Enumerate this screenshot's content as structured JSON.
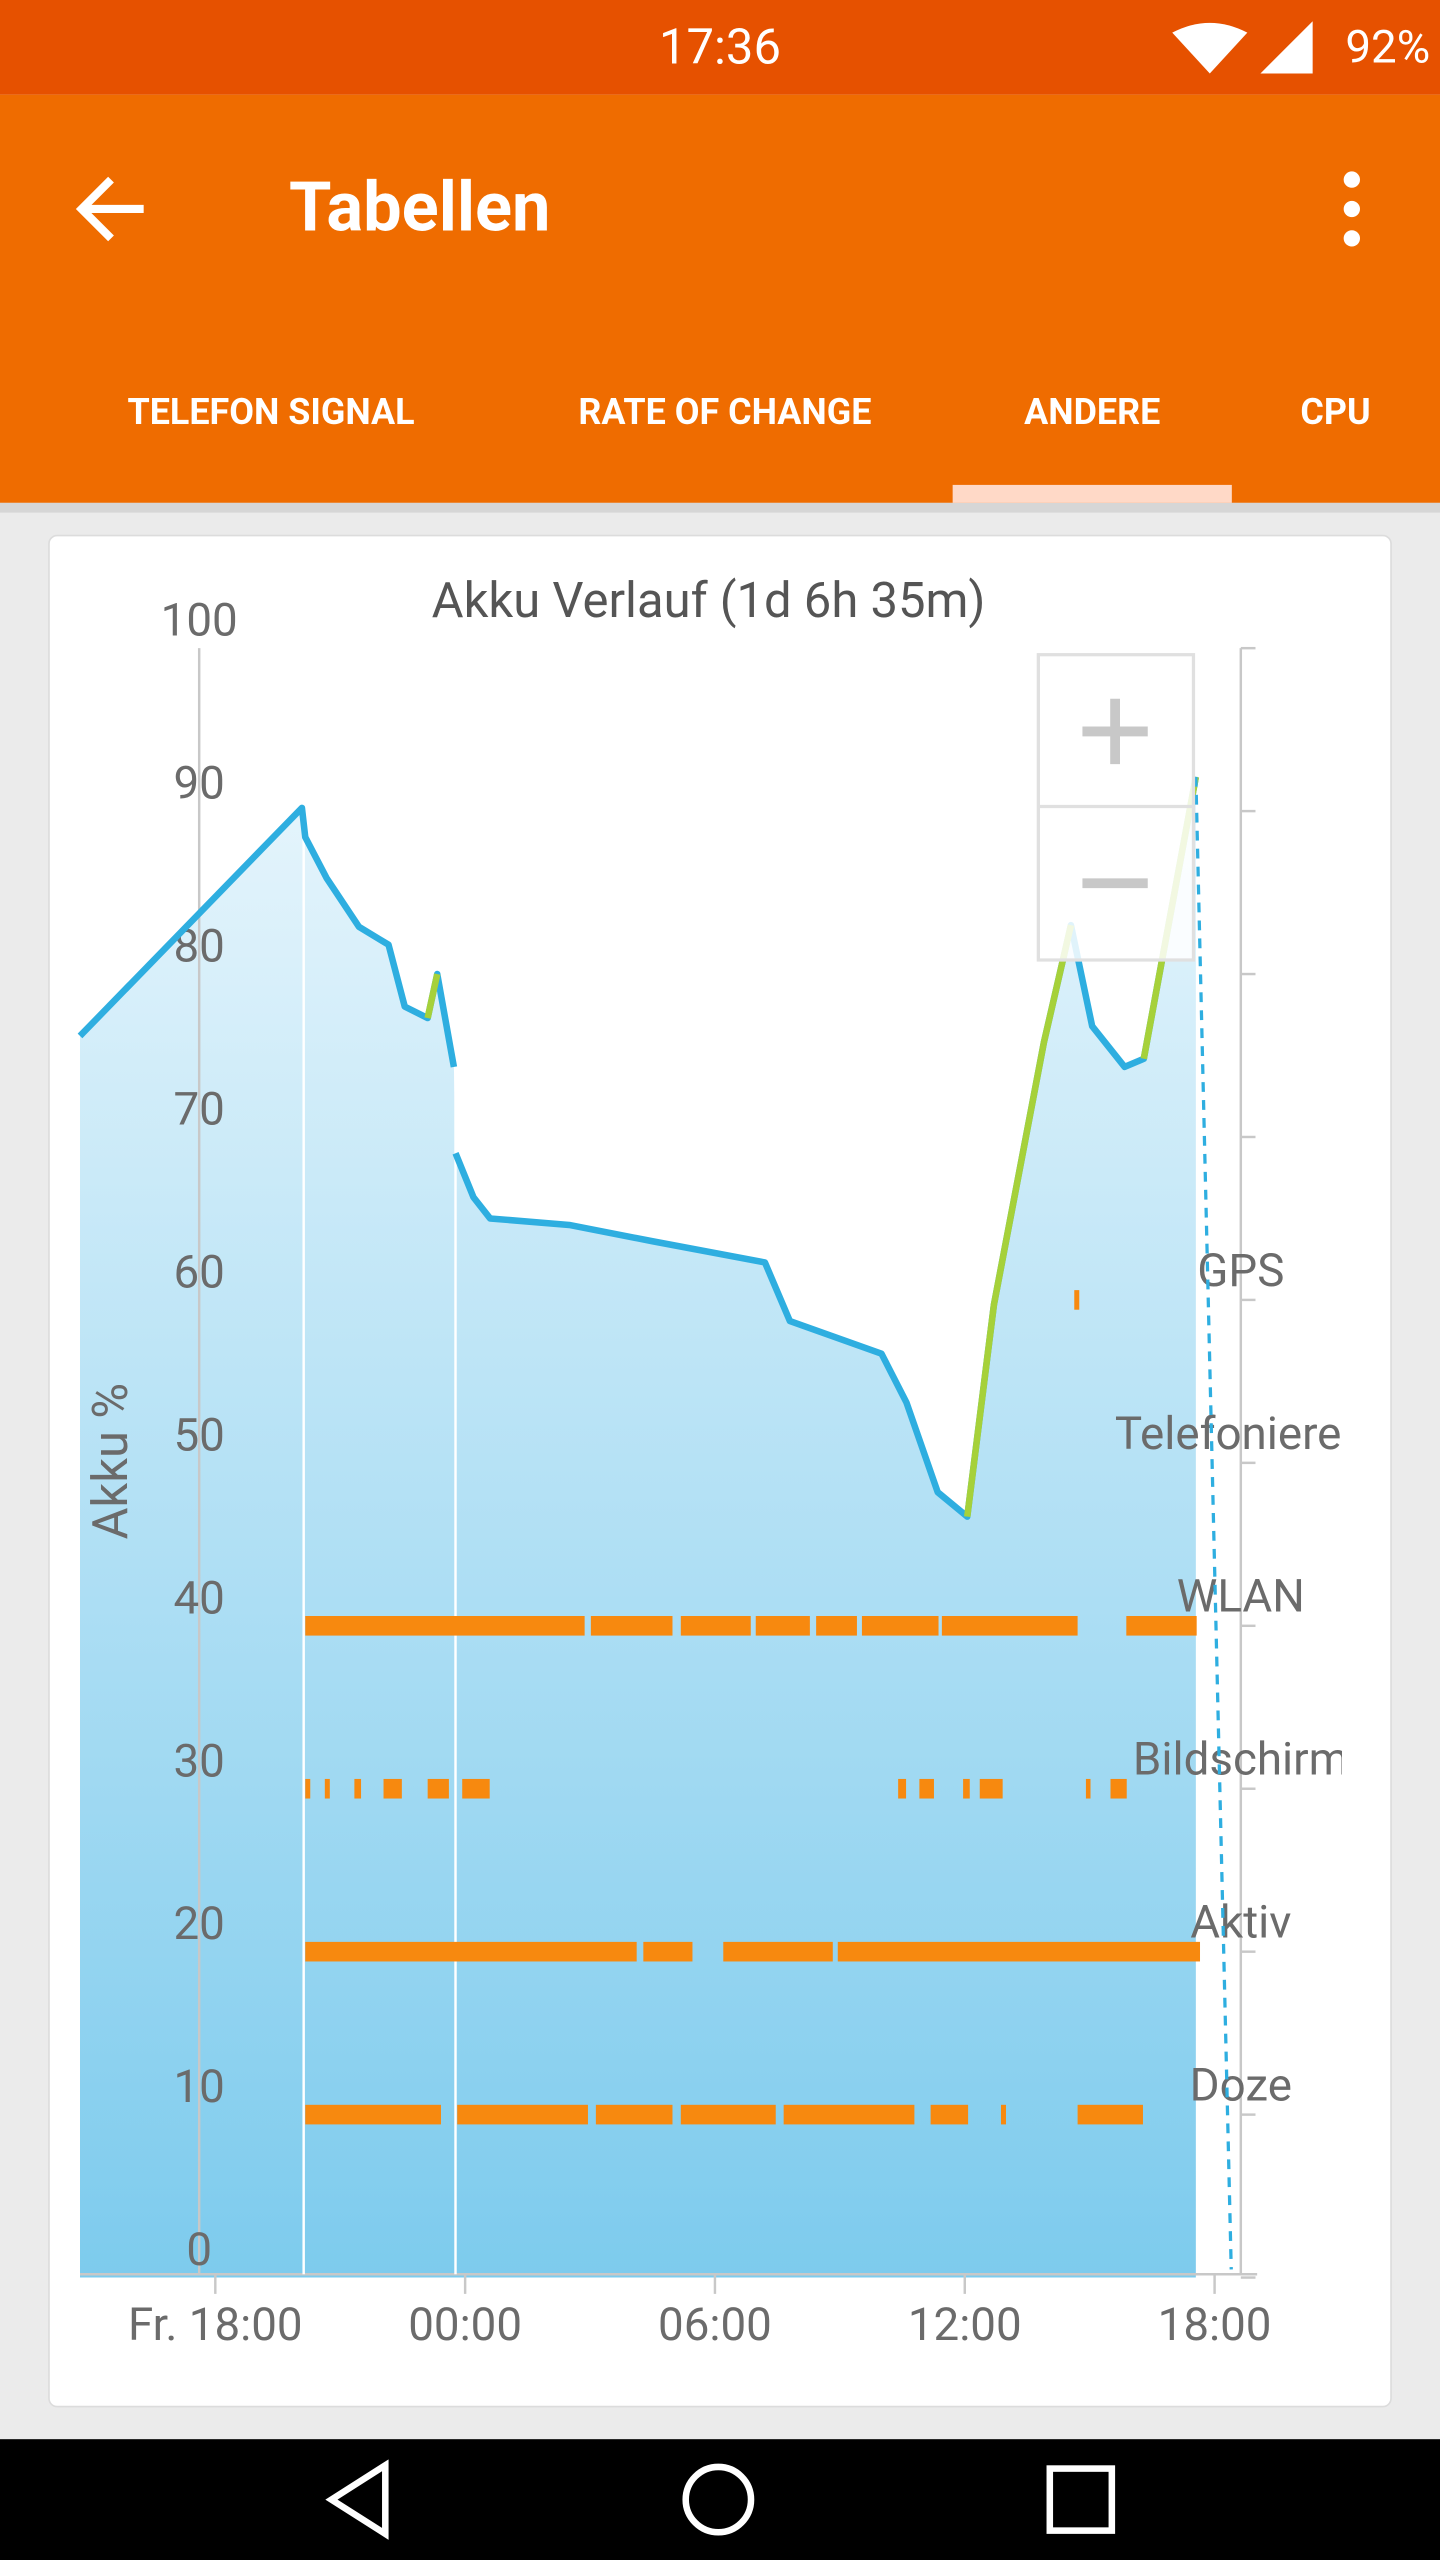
{
  "status_bar": {
    "time": "17:36",
    "battery": "92%"
  },
  "app_bar": {
    "title": "Tabellen"
  },
  "tabs": [
    "TELEFON SIGNAL",
    "RATE OF CHANGE",
    "ANDERE",
    "CPU"
  ],
  "selected_tab": 2,
  "chart_data": {
    "type": "line",
    "title": "Akku Verlauf (1d 6h 35m)",
    "y_label": "Akku %",
    "x": [
      14.75,
      20.08,
      20.16,
      20.67,
      21.45,
      22.16,
      22.55,
      23.1,
      23.33,
      23.73,
      23.75,
      23.77,
      24.2,
      24.6,
      26.5,
      28.5,
      31.2,
      31.8,
      34,
      34.6,
      35.35,
      36.06,
      36.7,
      37.9,
      38.55,
      39.06,
      39.84,
      40.3,
      41.55,
      42.4
    ],
    "series": [
      {
        "color": "#2eaee0",
        "style": "solid",
        "values": [
          76.2,
          90.2,
          88.4,
          85.9,
          82.9,
          81.8,
          78,
          77.3,
          80,
          74.3,
          null,
          69,
          66.3,
          65,
          64.6,
          63.6,
          62.3,
          58.7,
          56.7,
          53.7,
          48.2,
          46.7,
          59.7,
          75.8,
          83,
          76.8,
          74.3,
          74.8,
          92.1,
          null
        ]
      },
      {
        "color": "#a6d13a",
        "style": "solid",
        "values": [
          null,
          null,
          null,
          null,
          null,
          null,
          null,
          77.3,
          80,
          null,
          null,
          null,
          null,
          null,
          null,
          null,
          null,
          null,
          null,
          null,
          null,
          46.7,
          59.7,
          75.8,
          83,
          null,
          null,
          74.8,
          92.1,
          null
        ]
      },
      {
        "color": "#2eaee0",
        "style": "dashed",
        "values": [
          null,
          null,
          null,
          null,
          null,
          null,
          null,
          null,
          null,
          null,
          null,
          null,
          null,
          null,
          null,
          null,
          null,
          null,
          null,
          null,
          null,
          null,
          null,
          null,
          null,
          null,
          null,
          null,
          92.1,
          0.5
        ]
      }
    ],
    "xlim": [
      14.75,
      42.63
    ],
    "xticks": [
      {
        "value": 18,
        "label": "Fr. 18:00"
      },
      {
        "value": 24,
        "label": "00:00"
      },
      {
        "value": 30,
        "label": "06:00"
      },
      {
        "value": 36,
        "label": "12:00"
      },
      {
        "value": 42,
        "label": "18:00"
      }
    ],
    "ylim": [
      0,
      100
    ],
    "yticks": [
      0,
      10,
      20,
      30,
      40,
      50,
      60,
      70,
      80,
      90,
      100
    ],
    "track_color": "#f7890f",
    "tracks": [
      {
        "name": "GPS",
        "segments": [
          [
            38.63,
            38.75
          ]
        ]
      },
      {
        "name": "Telefonieren",
        "segments": []
      },
      {
        "name": "WLAN",
        "segments": [
          [
            20.16,
            26.87
          ],
          [
            27.02,
            28.98
          ],
          [
            29.18,
            30.86
          ],
          [
            30.98,
            32.28
          ],
          [
            32.43,
            33.41
          ],
          [
            33.53,
            35.37
          ],
          [
            35.45,
            38.71
          ],
          [
            39.88,
            41.57
          ]
        ]
      },
      {
        "name": "Bildschirm",
        "segments": [
          [
            20.16,
            20.28
          ],
          [
            20.63,
            20.75
          ],
          [
            21.34,
            21.5
          ],
          [
            22.04,
            22.48
          ],
          [
            23.1,
            23.61
          ],
          [
            23.93,
            24.59
          ],
          [
            34.4,
            34.59
          ],
          [
            34.91,
            35.26
          ],
          [
            35.96,
            36.12
          ],
          [
            36.36,
            36.91
          ],
          [
            38.91,
            39.02
          ],
          [
            39.5,
            39.89
          ]
        ]
      },
      {
        "name": "Aktiv",
        "segments": [
          [
            20.16,
            28.12
          ],
          [
            28.28,
            29.46
          ],
          [
            30.2,
            32.83
          ],
          [
            32.95,
            41.65
          ]
        ]
      },
      {
        "name": "Doze",
        "segments": [
          [
            20.16,
            23.42
          ],
          [
            23.81,
            26.95
          ],
          [
            27.14,
            28.98
          ],
          [
            29.18,
            31.46
          ],
          [
            31.65,
            34.79
          ],
          [
            35.18,
            36.08
          ],
          [
            36.87,
            36.99
          ],
          [
            38.71,
            40.28
          ]
        ]
      }
    ]
  }
}
